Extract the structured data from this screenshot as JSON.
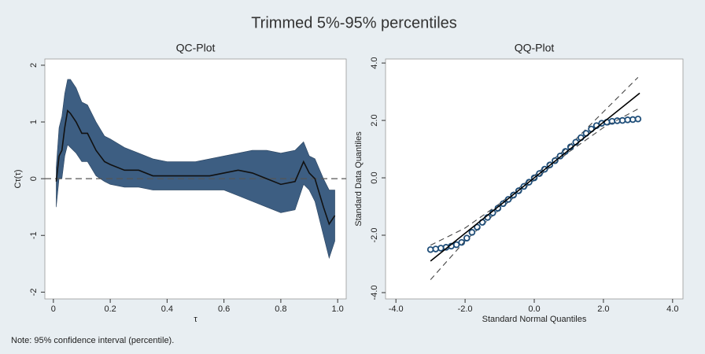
{
  "title": "Trimmed 5%-95% percentiles",
  "note": "Note: 95% confidence interval (percentile).",
  "chart_data": [
    {
      "type": "line",
      "title": "QC-Plot",
      "xlabel": "τ",
      "ylabel": "Cτ(τ)",
      "x": [
        0.01,
        0.02,
        0.03,
        0.04,
        0.05,
        0.06,
        0.08,
        0.1,
        0.12,
        0.15,
        0.18,
        0.2,
        0.25,
        0.3,
        0.35,
        0.4,
        0.45,
        0.5,
        0.55,
        0.6,
        0.65,
        0.7,
        0.75,
        0.8,
        0.85,
        0.88,
        0.9,
        0.92,
        0.95,
        0.97,
        0.99
      ],
      "series": [
        {
          "color": "#111111",
          "values": [
            -0.05,
            0.4,
            0.5,
            0.9,
            1.2,
            1.15,
            1.0,
            0.8,
            0.8,
            0.5,
            0.3,
            0.25,
            0.15,
            0.15,
            0.05,
            0.05,
            0.05,
            0.05,
            0.05,
            0.1,
            0.15,
            0.1,
            0.0,
            -0.1,
            -0.05,
            0.3,
            0.1,
            0.0,
            -0.5,
            -0.8,
            -0.65
          ]
        }
      ],
      "band": {
        "color": "#3d5e82",
        "upper": [
          0.2,
          0.9,
          1.1,
          1.5,
          1.75,
          1.75,
          1.6,
          1.35,
          1.3,
          1.0,
          0.75,
          0.7,
          0.55,
          0.45,
          0.35,
          0.3,
          0.3,
          0.3,
          0.35,
          0.4,
          0.45,
          0.5,
          0.5,
          0.45,
          0.5,
          0.65,
          0.4,
          0.35,
          0.0,
          -0.2,
          -0.2
        ],
        "lower": [
          -0.5,
          0.0,
          0.0,
          0.4,
          0.6,
          0.55,
          0.45,
          0.3,
          0.3,
          0.05,
          -0.05,
          -0.1,
          -0.15,
          -0.15,
          -0.2,
          -0.2,
          -0.2,
          -0.2,
          -0.2,
          -0.2,
          -0.3,
          -0.4,
          -0.5,
          -0.6,
          -0.55,
          -0.1,
          -0.2,
          -0.4,
          -1.0,
          -1.4,
          -1.1
        ]
      },
      "reference_line": 0,
      "xlim": [
        -0.03,
        1.03
      ],
      "ylim": [
        -2.12,
        2.11
      ],
      "xticks": [
        0,
        0.2,
        0.4,
        0.6,
        0.8,
        {
          "value": 1,
          "label": "1.0"
        }
      ],
      "yticks": [
        2,
        1,
        0,
        -1,
        -2
      ]
    },
    {
      "type": "scatter",
      "title": "QQ-Plot",
      "xlabel": "Standard Normal Quantiles",
      "ylabel": "Standard Data Quantiles",
      "x": [
        -3.0,
        -2.85,
        -2.7,
        -2.55,
        -2.4,
        -2.25,
        -2.1,
        -1.95,
        -1.8,
        -1.65,
        -1.5,
        -1.35,
        -1.2,
        -1.05,
        -0.9,
        -0.75,
        -0.6,
        -0.45,
        -0.3,
        -0.15,
        0,
        0.15,
        0.3,
        0.45,
        0.6,
        0.75,
        0.9,
        1.05,
        1.2,
        1.35,
        1.5,
        1.65,
        1.8,
        1.95,
        2.1,
        2.25,
        2.4,
        2.55,
        2.7,
        2.85,
        3.0
      ],
      "series": [
        {
          "color": "#1f4e79",
          "values": [
            -2.5,
            -2.48,
            -2.45,
            -2.42,
            -2.38,
            -2.33,
            -2.25,
            -2.1,
            -1.9,
            -1.72,
            -1.55,
            -1.38,
            -1.22,
            -1.06,
            -0.9,
            -0.75,
            -0.6,
            -0.45,
            -0.3,
            -0.15,
            0,
            0.15,
            0.3,
            0.45,
            0.6,
            0.76,
            0.92,
            1.08,
            1.24,
            1.4,
            1.55,
            1.7,
            1.82,
            1.9,
            1.94,
            1.97,
            1.99,
            2.0,
            2.02,
            2.03,
            2.05
          ]
        }
      ],
      "fit_line": {
        "color": "#000000",
        "x": [
          -3,
          3.05
        ],
        "y": [
          -2.9,
          2.95
        ]
      },
      "bounds": {
        "color": "#444444",
        "x": [
          -3,
          -2,
          -1,
          0,
          1,
          2,
          3
        ],
        "upper": [
          -2.35,
          -1.75,
          -0.9,
          0.08,
          1.1,
          2.3,
          3.5
        ],
        "lower": [
          -3.55,
          -2.2,
          -1.1,
          -0.08,
          0.9,
          1.75,
          2.4
        ]
      },
      "xlim": [
        -4.3,
        4.3
      ],
      "ylim": [
        -4.22,
        4.14
      ],
      "xticks": [
        {
          "value": -4,
          "label": "-4.0"
        },
        {
          "value": -2,
          "label": "-2.0"
        },
        {
          "value": 0,
          "label": "0.0"
        },
        {
          "value": 2,
          "label": "2.0"
        },
        {
          "value": 4,
          "label": "4.0"
        }
      ],
      "yticks": [
        {
          "value": 4,
          "label": "4.0"
        },
        {
          "value": 2,
          "label": "2.0"
        },
        {
          "value": 0,
          "label": "0.0"
        },
        {
          "value": -2,
          "label": "-2.0"
        },
        {
          "value": -4,
          "label": "-4.0"
        }
      ]
    }
  ]
}
